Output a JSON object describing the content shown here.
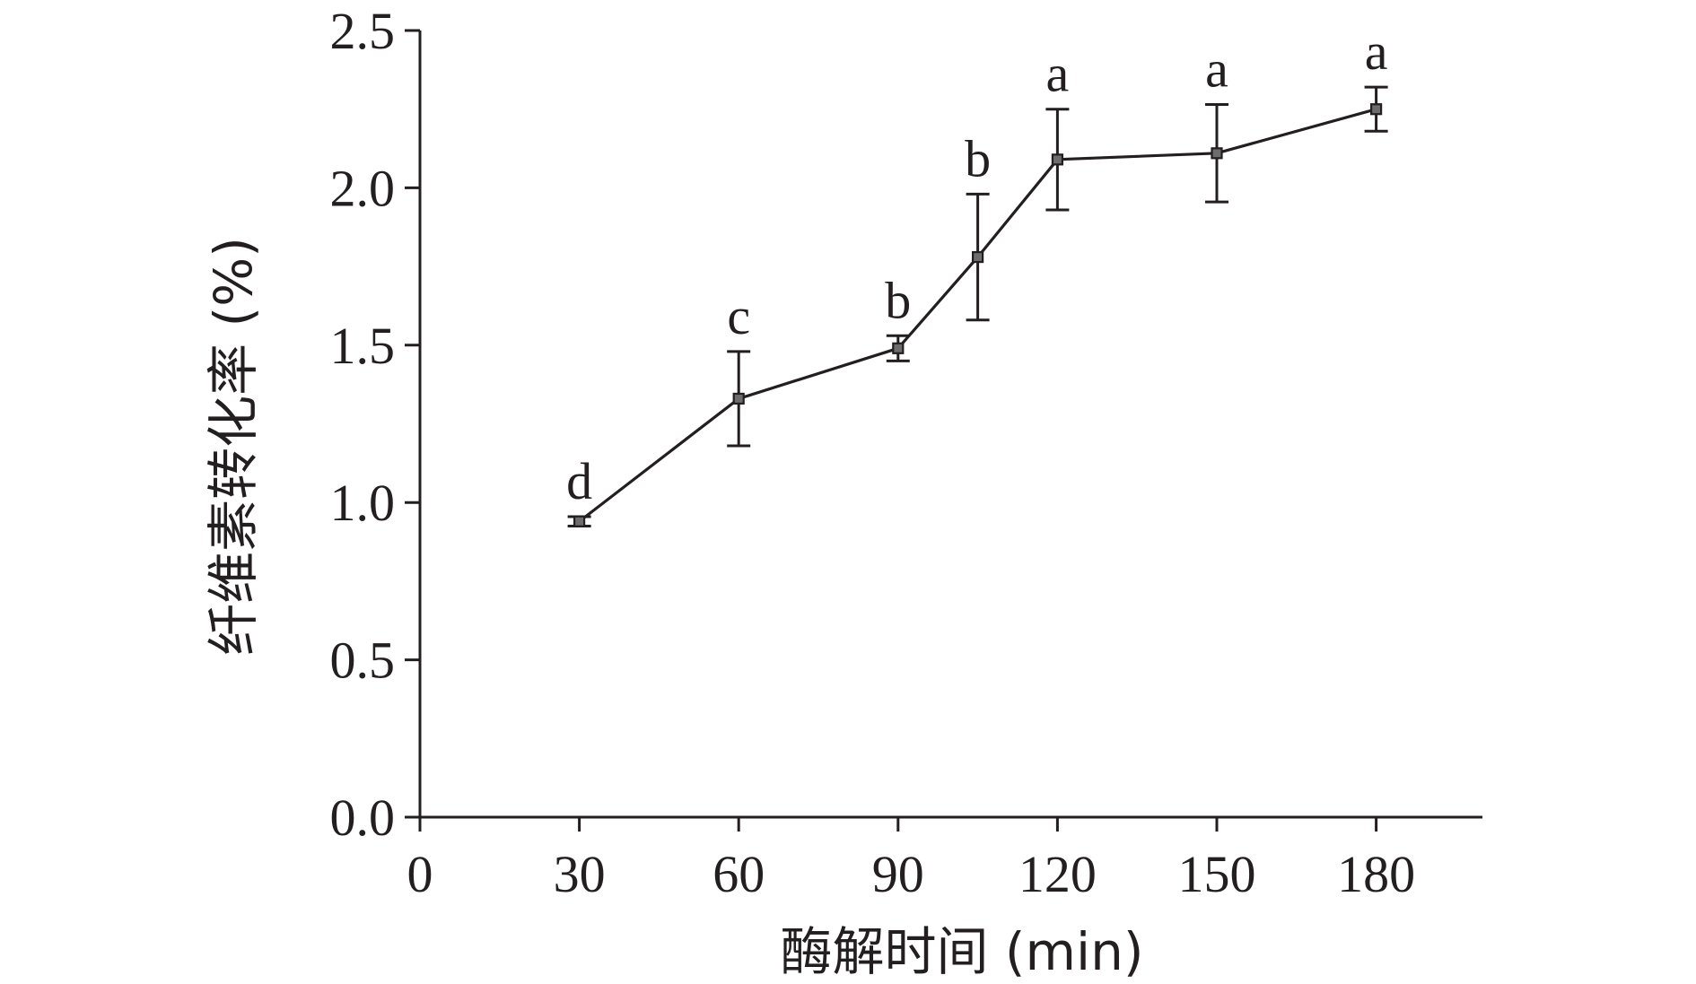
{
  "chart_data": {
    "type": "line",
    "xlabel": "酶解时间 (min)",
    "ylabel": "纤维素转化率 (%)",
    "xlim": [
      0,
      200
    ],
    "ylim": [
      0,
      2.5
    ],
    "x_ticks": [
      0,
      30,
      60,
      90,
      120,
      150,
      180
    ],
    "x_tick_labels": [
      "0",
      "30",
      "60",
      "90",
      "120",
      "150",
      "180"
    ],
    "y_ticks": [
      0,
      0.5,
      1.0,
      1.5,
      2.0,
      2.5
    ],
    "y_tick_labels": [
      "0.0",
      "0.5",
      "1.0",
      "1.5",
      "2.0",
      "2.5"
    ],
    "grid": false,
    "series": [
      {
        "x": [
          30,
          60,
          90,
          105,
          120,
          150,
          180
        ],
        "values": [
          0.94,
          1.33,
          1.49,
          1.78,
          2.09,
          2.11,
          2.25
        ],
        "err": [
          0.015,
          0.15,
          0.04,
          0.2,
          0.16,
          0.155,
          0.07
        ],
        "labels": [
          "d",
          "c",
          "b",
          "b",
          "a",
          "a",
          "a"
        ]
      }
    ]
  }
}
